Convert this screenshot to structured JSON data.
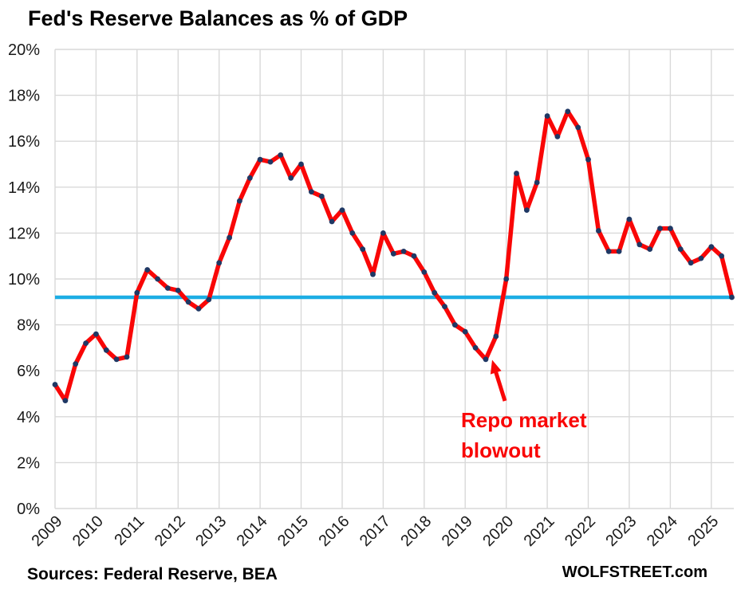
{
  "chart_data": {
    "type": "line",
    "title": "Fed's Reserve Balances as % of GDP",
    "frequency": "quarterly",
    "x_tick_labels": [
      "2009",
      "2010",
      "2011",
      "2012",
      "2013",
      "2014",
      "2015",
      "2016",
      "2017",
      "2018",
      "2019",
      "2020",
      "2021",
      "2022",
      "2023",
      "2024",
      "2025"
    ],
    "y_tick_labels": [
      "0%",
      "2%",
      "4%",
      "6%",
      "8%",
      "10%",
      "12%",
      "14%",
      "16%",
      "18%",
      "20%"
    ],
    "ylim": [
      0,
      20
    ],
    "grid": true,
    "series": [
      {
        "name": "Fed reserve balances as % of GDP",
        "color": "#f90606",
        "marker_color": "#1f3864",
        "values": [
          5.4,
          4.7,
          6.3,
          7.2,
          7.6,
          6.9,
          6.5,
          6.6,
          9.4,
          10.4,
          10.0,
          9.6,
          9.5,
          9.0,
          8.7,
          9.1,
          10.7,
          11.8,
          13.4,
          14.4,
          15.2,
          15.1,
          15.4,
          14.4,
          15.0,
          13.8,
          13.6,
          12.5,
          13.0,
          12.0,
          11.3,
          10.2,
          12.0,
          11.1,
          11.2,
          11.0,
          10.3,
          9.4,
          8.8,
          8.0,
          7.7,
          7.0,
          6.5,
          7.5,
          10.0,
          14.6,
          13.0,
          14.2,
          17.1,
          16.2,
          17.3,
          16.6,
          15.2,
          12.1,
          11.2,
          11.2,
          12.6,
          11.5,
          11.3,
          12.2,
          12.2,
          11.3,
          10.7,
          10.9,
          11.4,
          11.0,
          9.2
        ]
      }
    ],
    "reference_line": {
      "value": 9.2,
      "color": "#1cade4"
    },
    "annotation": {
      "line1": "Repo market",
      "line2": "blowout",
      "color": "#f90606",
      "points_to": "2019 Q3 low (6.5%)"
    }
  },
  "footer": {
    "sources": "Sources: Federal Reserve, BEA",
    "site": "WOLFSTREET.com"
  }
}
